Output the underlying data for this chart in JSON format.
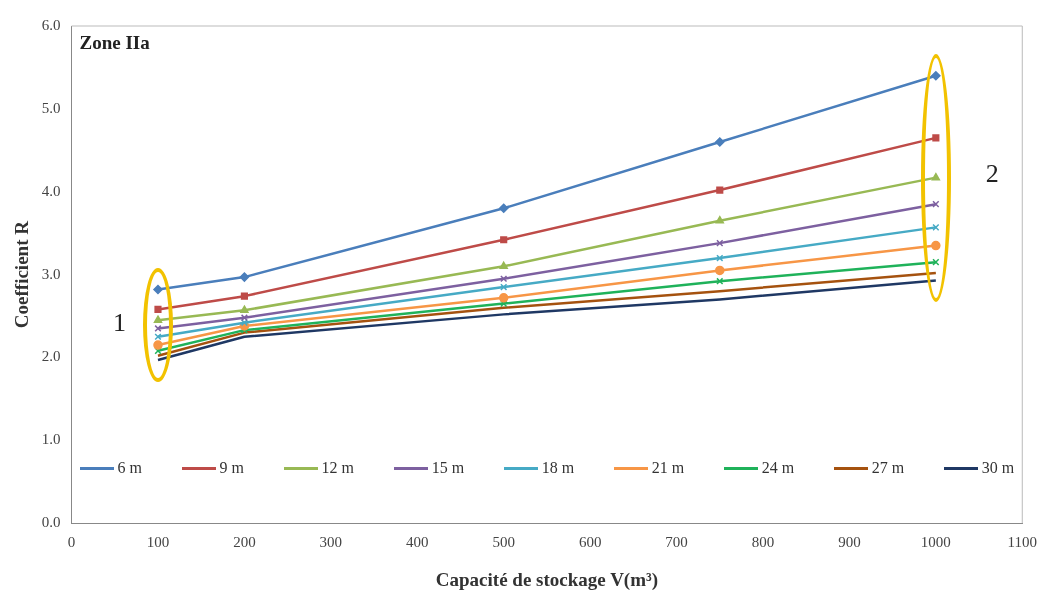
{
  "chart_data": {
    "type": "line",
    "xlabel": "Capacité de stockage V(m³)",
    "ylabel": "Coefficient R",
    "x": [
      100,
      200,
      500,
      750,
      1000
    ],
    "xlim": [
      0,
      1100
    ],
    "xticks": [
      0,
      100,
      200,
      300,
      400,
      500,
      600,
      700,
      800,
      900,
      1000,
      1100
    ],
    "ylim": [
      0,
      6
    ],
    "yticks": [
      {
        "value": 0,
        "label": "0.0"
      },
      {
        "value": 1,
        "label": "1.0"
      },
      {
        "value": 2,
        "label": "2.0"
      },
      {
        "value": 3,
        "label": "3.0"
      },
      {
        "value": 4,
        "label": "4.0"
      },
      {
        "value": 5,
        "label": "5.0"
      },
      {
        "value": 6,
        "label": "6.0"
      }
    ],
    "grid": false,
    "legend": "bottom",
    "line_style": "solid",
    "annotations": [
      "Zone IIa",
      {
        "text": "1",
        "x": 100,
        "y": 2.4
      },
      {
        "text": "2",
        "x": 1000,
        "y": 4.2
      }
    ],
    "series": [
      {
        "name": "6 m",
        "color": "#4a7ebb",
        "marker": "diamond",
        "values": [
          2.82,
          2.97,
          3.8,
          4.6,
          5.4
        ]
      },
      {
        "name": "9 m",
        "color": "#be4b48",
        "marker": "square",
        "values": [
          2.58,
          2.74,
          3.42,
          4.02,
          4.65
        ]
      },
      {
        "name": "12 m",
        "color": "#98b954",
        "marker": "triangle",
        "values": [
          2.45,
          2.57,
          3.1,
          3.65,
          4.17
        ]
      },
      {
        "name": "15 m",
        "color": "#7d60a0",
        "marker": "cross",
        "values": [
          2.35,
          2.48,
          2.95,
          3.38,
          3.85
        ]
      },
      {
        "name": "18 m",
        "color": "#46aac5",
        "marker": "cross",
        "values": [
          2.25,
          2.42,
          2.85,
          3.2,
          3.57
        ]
      },
      {
        "name": "21 m",
        "color": "#f79646",
        "marker": "circle",
        "values": [
          2.15,
          2.38,
          2.72,
          3.05,
          3.35
        ]
      },
      {
        "name": "24 m",
        "color": "#1fb25a",
        "marker": "cross",
        "values": [
          2.08,
          2.33,
          2.65,
          2.92,
          3.15
        ]
      },
      {
        "name": "27 m",
        "color": "#a5520f",
        "marker": "none",
        "values": [
          2.02,
          2.3,
          2.6,
          2.8,
          3.02
        ]
      },
      {
        "name": "30 m",
        "color": "#1f3864",
        "marker": "none",
        "values": [
          1.97,
          2.25,
          2.52,
          2.7,
          2.93
        ]
      }
    ]
  }
}
